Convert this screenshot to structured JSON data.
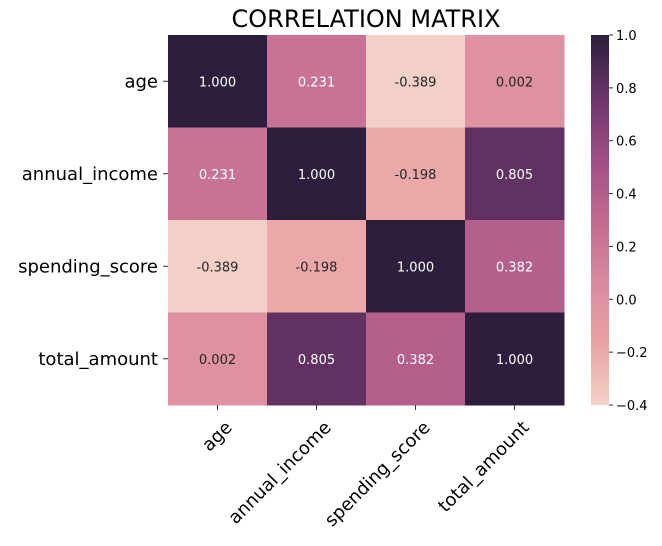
{
  "chart_data": {
    "type": "heatmap",
    "title": "CORRELATION MATRIX",
    "rows": [
      "age",
      "annual_income",
      "spending_score",
      "total_amount"
    ],
    "columns": [
      "age",
      "annual_income",
      "spending_score",
      "total_amount"
    ],
    "values": [
      [
        1.0,
        0.231,
        -0.389,
        0.002
      ],
      [
        0.231,
        1.0,
        -0.198,
        0.805
      ],
      [
        -0.389,
        -0.198,
        1.0,
        0.382
      ],
      [
        0.002,
        0.805,
        0.382,
        1.0
      ]
    ],
    "value_format": "3 decimals",
    "colorbar": {
      "range": [
        -0.4,
        1.0
      ],
      "ticks": [
        "1.0",
        "0.8",
        "0.6",
        "0.4",
        "0.2",
        "0.0",
        "−0.2",
        "−0.4"
      ],
      "tick_values": [
        1.0,
        0.8,
        0.6,
        0.4,
        0.2,
        0.0,
        -0.2,
        -0.4
      ],
      "colormap": [
        "#f4d2c9",
        "#e8a3a3",
        "#d98aa0",
        "#c2698f",
        "#9e4e86",
        "#6c3568",
        "#2c1e3c"
      ]
    },
    "text_colors": {
      "light": "#ffffff",
      "dark": "#262626"
    },
    "grid": false
  }
}
